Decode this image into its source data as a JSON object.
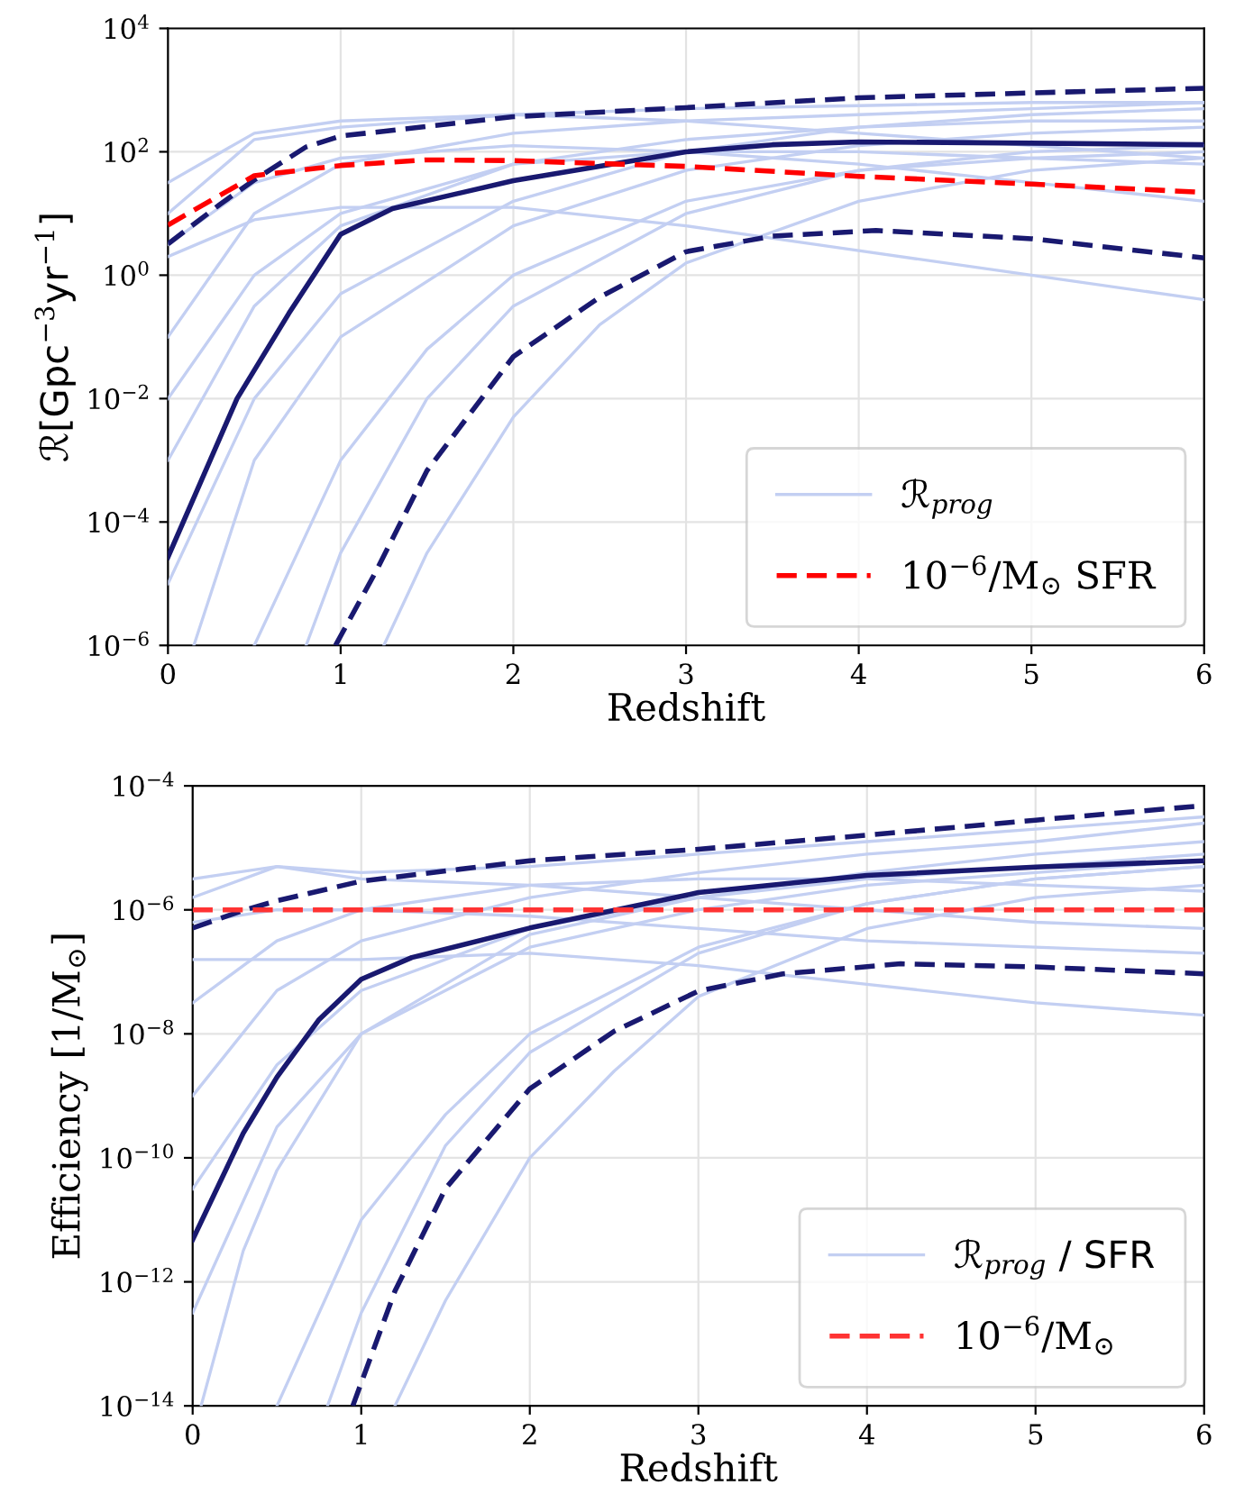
{
  "chart_data": [
    {
      "type": "line",
      "xlabel": "Redshift",
      "ylabel": "ℛ[Gpc$^{−3}$yr$^{−1}$]",
      "log": "y",
      "grid": true,
      "legend": "bottom right",
      "xlim": [
        0,
        6
      ],
      "xticks": [
        0,
        1,
        2,
        3,
        4,
        5,
        6
      ],
      "ylim": [
        1e-06,
        10000.0
      ],
      "yticks": [
        {
          "value": 1e-06,
          "label": "10$^{−6}$"
        },
        {
          "value": 0.0001,
          "label": "10$^{−4}$"
        },
        {
          "value": 0.01,
          "label": "10$^{−2}$"
        },
        {
          "value": 1,
          "label": "10$^{0}$"
        },
        {
          "value": 100.0,
          "label": "10$^{2}$"
        },
        {
          "value": 10000.0,
          "label": "10$^{4}$"
        }
      ],
      "series": [
        {
          "name": "ℛ$_{prog}$",
          "color": "#c3cff2",
          "line_style": "solid",
          "x": [
            0,
            0.5,
            1,
            2,
            3,
            4,
            5,
            6
          ],
          "values": [
            10.0,
            158.0,
            250.0,
            400.0,
            500.0,
            560.0,
            630.0,
            630.0
          ]
        },
        {
          "color": "#c3cff2",
          "line_style": "solid",
          "x": [
            0,
            0.5,
            1,
            2,
            3,
            4,
            5,
            6
          ],
          "values": [
            0.1,
            10.0,
            63.0,
            200.0,
            316.0,
            400.0,
            500.0,
            630.0
          ]
        },
        {
          "color": "#c3cff2",
          "line_style": "solid",
          "x": [
            0,
            0.5,
            1,
            2,
            3,
            4,
            5,
            6
          ],
          "values": [
            2,
            7.9,
            12.6,
            12.6,
            6.3,
            2.5,
            1,
            0.4
          ]
        },
        {
          "color": "#c3cff2",
          "line_style": "solid",
          "x": [
            0,
            0.5,
            1,
            2,
            3,
            4,
            5,
            6
          ],
          "values": [
            0.001,
            0.316,
            6.3,
            63.0,
            158.0,
            250.0,
            316.0,
            316.0
          ]
        },
        {
          "color": "#c3cff2",
          "line_style": "solid",
          "x": [
            0.15,
            0.5,
            1,
            2,
            3,
            4,
            5,
            6
          ],
          "values": [
            1e-06,
            0.001,
            0.1,
            6.3,
            50.0,
            126.0,
            200.0,
            250.0
          ]
        },
        {
          "color": "#c3cff2",
          "line_style": "solid",
          "x": [
            0.8,
            1,
            1.5,
            2,
            3,
            4,
            5,
            6
          ],
          "values": [
            1e-06,
            3.16e-05,
            0.01,
            0.316,
            10.0,
            50.0,
            100.0,
            126.0
          ]
        },
        {
          "color": "#c3cff2",
          "line_style": "solid",
          "x": [
            1.25,
            1.5,
            2,
            2.5,
            3,
            4,
            5,
            6
          ],
          "values": [
            1e-06,
            3.16e-05,
            0.005,
            0.158,
            1.58,
            15.8,
            50.0,
            79.0
          ]
        },
        {
          "color": "#c3cff2",
          "line_style": "solid",
          "x": [
            0,
            0.5,
            1,
            2,
            3,
            4,
            5,
            6
          ],
          "values": [
            0.01,
            1,
            10.0,
            63.0,
            100.0,
            100.0,
            79.0,
            63.0
          ]
        },
        {
          "color": "#c3cff2",
          "line_style": "solid",
          "x": [
            0,
            0.5,
            1,
            2,
            3,
            4,
            5,
            6
          ],
          "values": [
            3.16,
            31.6,
            79.0,
            126.0,
            100.0,
            63.0,
            31.6,
            15.8
          ]
        },
        {
          "color": "#c3cff2",
          "line_style": "solid",
          "x": [
            0,
            0.5,
            1,
            2,
            3,
            4,
            5,
            6
          ],
          "values": [
            1e-05,
            0.01,
            0.5,
            15.8,
            100.0,
            250.0,
            400.0,
            500.0
          ]
        },
        {
          "color": "#c3cff2",
          "line_style": "solid",
          "x": [
            0,
            0.5,
            1,
            2,
            3,
            4,
            5,
            6
          ],
          "values": [
            31.6,
            200.0,
            316.0,
            400.0,
            316.0,
            200.0,
            126.0,
            79.0
          ]
        },
        {
          "color": "#c3cff2",
          "line_style": "solid",
          "x": [
            0.5,
            1,
            1.5,
            2,
            3,
            4,
            5,
            6
          ],
          "values": [
            1e-06,
            0.001,
            0.063,
            1,
            15.8,
            50.0,
            79.0,
            100.0
          ]
        },
        {
          "color": "#191970",
          "line_style": "solid",
          "x": [
            0,
            0.4,
            0.7,
            1,
            1.3,
            2,
            3,
            3.5,
            4,
            5,
            6
          ],
          "values": [
            2.7e-05,
            0.01,
            0.24,
            4.6,
            12.0,
            34.0,
            100.0,
            130.0,
            145.0,
            138.0,
            130.0
          ]
        },
        {
          "color": "#191970",
          "line_style": "dashed",
          "x": [
            0,
            0.3,
            0.5,
            0.8,
            1,
            2,
            3,
            4,
            5,
            6
          ],
          "values": [
            3.2,
            14.0,
            35.0,
            120.0,
            180.0,
            370.0,
            520.0,
            750.0,
            900.0,
            1070.0
          ]
        },
        {
          "color": "#191970",
          "line_style": "dashed",
          "x": [
            0.97,
            1.2,
            1.5,
            2,
            2.5,
            3,
            3.5,
            4.1,
            5,
            6
          ],
          "values": [
            1e-06,
            1.5e-05,
            0.00068,
            0.048,
            0.44,
            2.4,
            4.3,
            5.3,
            3.9,
            1.9
          ]
        },
        {
          "name": "10$^{−6}$/M$_{⊙}$ SFR",
          "color": "#ff0000",
          "line_style": "dashed",
          "x": [
            0,
            0.5,
            1,
            1.5,
            2,
            3,
            4,
            5,
            6
          ],
          "values": [
            6.5,
            41.0,
            60.0,
            74.0,
            72.0,
            58.0,
            40.0,
            30.0,
            22.0
          ]
        }
      ]
    },
    {
      "type": "line",
      "xlabel": "Redshift",
      "ylabel": "Efficiency [1/M$_{⊙}$]",
      "log": "y",
      "grid": true,
      "legend": "bottom right",
      "xlim": [
        0,
        6
      ],
      "xticks": [
        0,
        1,
        2,
        3,
        4,
        5,
        6
      ],
      "ylim": [
        1e-14,
        0.0001
      ],
      "yticks": [
        {
          "value": 1e-14,
          "label": "10$^{−14}$"
        },
        {
          "value": 1e-12,
          "label": "10$^{−12}$"
        },
        {
          "value": 1e-10,
          "label": "10$^{−10}$"
        },
        {
          "value": 1e-08,
          "label": "10$^{−8}$"
        },
        {
          "value": 1e-06,
          "label": "10$^{−6}$"
        },
        {
          "value": 0.0001,
          "label": "10$^{−4}$"
        }
      ],
      "series": [
        {
          "name": "ℛ$_{prog}$ / SFR",
          "color": "#c3cff2",
          "line_style": "solid",
          "x": [
            0,
            0.5,
            1,
            2,
            3,
            4,
            5,
            6
          ],
          "values": [
            1.58e-06,
            5e-06,
            4e-06,
            5e-06,
            7.9e-06,
            1.26e-05,
            2e-05,
            3.16e-05
          ]
        },
        {
          "color": "#c3cff2",
          "line_style": "solid",
          "x": [
            0,
            0.5,
            1,
            2,
            3,
            4,
            5,
            6
          ],
          "values": [
            1.58e-07,
            1.58e-07,
            1.58e-07,
            2e-07,
            1.26e-07,
            6.3e-08,
            3.16e-08,
            2e-08
          ]
        },
        {
          "color": "#c3cff2",
          "line_style": "solid",
          "x": [
            0,
            0.5,
            1,
            2,
            3,
            4,
            5,
            6
          ],
          "values": [
            1e-09,
            5e-08,
            3.16e-07,
            1.58e-06,
            4e-06,
            7.9e-06,
            1.26e-05,
            2.5e-05
          ]
        },
        {
          "color": "#c3cff2",
          "line_style": "solid",
          "x": [
            0.05,
            0.3,
            0.5,
            1,
            2,
            3,
            4,
            5,
            6
          ],
          "values": [
            1e-14,
            3.16e-12,
            6.3e-11,
            1e-08,
            4e-07,
            1.58e-06,
            4e-06,
            7.9e-06,
            1.26e-05
          ]
        },
        {
          "color": "#c3cff2",
          "line_style": "solid",
          "x": [
            0.8,
            1,
            1.5,
            2,
            3,
            4,
            5,
            6
          ],
          "values": [
            1e-14,
            3.16e-13,
            1.58e-10,
            5e-09,
            2e-07,
            1.26e-06,
            3.16e-06,
            5e-06
          ]
        },
        {
          "color": "#c3cff2",
          "line_style": "solid",
          "x": [
            1.2,
            1.5,
            2,
            2.5,
            3,
            4,
            5,
            6
          ],
          "values": [
            1e-14,
            5e-13,
            1e-10,
            2.5e-09,
            4e-08,
            5e-07,
            1.58e-06,
            2.5e-06
          ]
        },
        {
          "color": "#c3cff2",
          "line_style": "solid",
          "x": [
            0,
            0.5,
            1,
            2,
            3,
            4,
            5,
            6
          ],
          "values": [
            3.16e-08,
            3.16e-07,
            1e-06,
            2.5e-06,
            3.16e-06,
            3.16e-06,
            2.5e-06,
            2e-06
          ]
        },
        {
          "color": "#c3cff2",
          "line_style": "solid",
          "x": [
            0,
            0.5,
            1,
            2,
            3,
            4,
            5,
            6
          ],
          "values": [
            3.16e-13,
            3.16e-10,
            1e-08,
            2.5e-07,
            1e-06,
            2.5e-06,
            4e-06,
            6.3e-06
          ]
        },
        {
          "color": "#c3cff2",
          "line_style": "solid",
          "x": [
            0,
            0.5,
            1,
            2,
            3,
            4,
            5,
            6
          ],
          "values": [
            6.3e-07,
            1e-06,
            1e-06,
            7.9e-07,
            5e-07,
            3.16e-07,
            2.5e-07,
            2e-07
          ]
        },
        {
          "color": "#c3cff2",
          "line_style": "solid",
          "x": [
            0.5,
            1,
            1.5,
            2,
            3,
            4,
            5,
            6
          ],
          "values": [
            1e-14,
            1e-11,
            5e-10,
            1e-08,
            2.5e-07,
            1.26e-06,
            3.16e-06,
            5e-06
          ]
        },
        {
          "color": "#c3cff2",
          "line_style": "solid",
          "x": [
            0,
            0.5,
            1,
            2,
            3,
            4,
            5,
            6
          ],
          "values": [
            3.16e-11,
            3.16e-09,
            5e-08,
            5e-07,
            1.58e-06,
            3.16e-06,
            5e-06,
            7.9e-06
          ]
        },
        {
          "color": "#c3cff2",
          "line_style": "solid",
          "x": [
            0,
            0.5,
            1,
            2,
            3,
            4,
            5,
            6
          ],
          "values": [
            3.16e-06,
            5e-06,
            3.16e-06,
            2.5e-06,
            1.58e-06,
            1e-06,
            6.3e-07,
            5e-07
          ]
        },
        {
          "color": "#191970",
          "line_style": "solid",
          "x": [
            0,
            0.3,
            0.5,
            0.75,
            1,
            1.3,
            2,
            3,
            4,
            5,
            6
          ],
          "values": [
            4.8e-12,
            2.5e-10,
            2e-09,
            1.7e-08,
            7.6e-08,
            1.7e-07,
            5.1e-07,
            1.9e-06,
            3.6e-06,
            4.9e-06,
            6.2e-06
          ]
        },
        {
          "color": "#191970",
          "line_style": "dashed",
          "x": [
            0,
            0.3,
            0.5,
            1,
            2,
            3,
            4,
            5,
            6
          ],
          "values": [
            5.1e-07,
            9.8e-07,
            1.4e-06,
            2.9e-06,
            6.2e-06,
            9.5e-06,
            1.6e-05,
            2.8e-05,
            4.8e-05
          ]
        },
        {
          "color": "#191970",
          "line_style": "dashed",
          "x": [
            0.95,
            1.2,
            1.5,
            2,
            2.5,
            3,
            3.5,
            4.2,
            5,
            6
          ],
          "values": [
            1e-14,
            7.1e-13,
            3.2e-11,
            1.3e-09,
            1.1e-08,
            4.9e-08,
            9.3e-08,
            1.35e-07,
            1.2e-07,
            9.3e-08
          ]
        },
        {
          "name": "10$^{−6}$/M$_{⊙}$",
          "color": "#ff3333",
          "line_style": "dashed",
          "x": [
            0,
            6
          ],
          "values": [
            1e-06,
            1e-06
          ]
        }
      ]
    }
  ]
}
